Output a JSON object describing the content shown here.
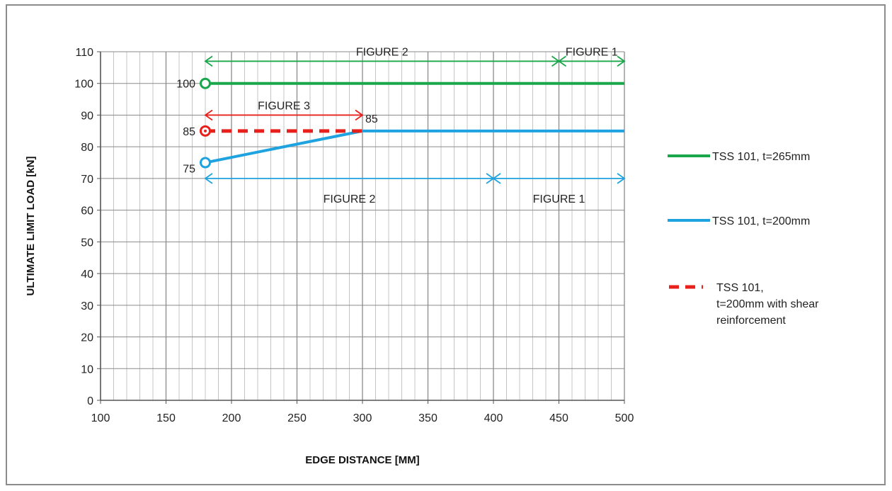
{
  "chart_data": {
    "type": "line",
    "xlabel": "EDGE DISTANCE [MM]",
    "ylabel": "ULTIMATE LIMIT LOAD [kN]",
    "xlim": [
      100,
      500
    ],
    "ylim": [
      0,
      110
    ],
    "x_ticks": [
      100,
      150,
      200,
      250,
      300,
      350,
      400,
      450,
      500
    ],
    "y_ticks": [
      0,
      10,
      20,
      30,
      40,
      50,
      60,
      70,
      80,
      90,
      100,
      110
    ],
    "grid": true,
    "legend_position": "right",
    "series": [
      {
        "name": "TSS 101, t=265mm",
        "color": "#1aa64b",
        "style": "solid",
        "points": [
          [
            180,
            100
          ],
          [
            500,
            100
          ]
        ],
        "start_label": "100"
      },
      {
        "name": "TSS 101, t=200mm",
        "color": "#1ea3e0",
        "style": "solid",
        "points": [
          [
            180,
            75
          ],
          [
            300,
            85
          ],
          [
            500,
            85
          ]
        ],
        "start_label": "75"
      },
      {
        "name": "TSS 101, t=200mm with shear reinforcement",
        "legend_lines": [
          "TSS 101,",
          "t=200mm with shear",
          "reinforcement"
        ],
        "color": "#e8201c",
        "style": "dashed",
        "points": [
          [
            180,
            85
          ],
          [
            300,
            85
          ]
        ],
        "start_label": "85",
        "end_label": "85"
      }
    ],
    "range_annotations": [
      {
        "label": "FIGURE 2",
        "x": [
          180,
          450
        ],
        "y": 107,
        "color": "#1aa64b"
      },
      {
        "label": "FIGURE 1",
        "x": [
          450,
          500
        ],
        "y": 107,
        "color": "#1aa64b"
      },
      {
        "label": "FIGURE 3",
        "x": [
          180,
          300
        ],
        "y": 90,
        "color": "#e8201c"
      },
      {
        "label": "FIGURE 2",
        "x": [
          180,
          400
        ],
        "y": 70,
        "color": "#1ea3e0"
      },
      {
        "label": "FIGURE 1",
        "x": [
          400,
          500
        ],
        "y": 70,
        "color": "#1ea3e0"
      }
    ]
  }
}
